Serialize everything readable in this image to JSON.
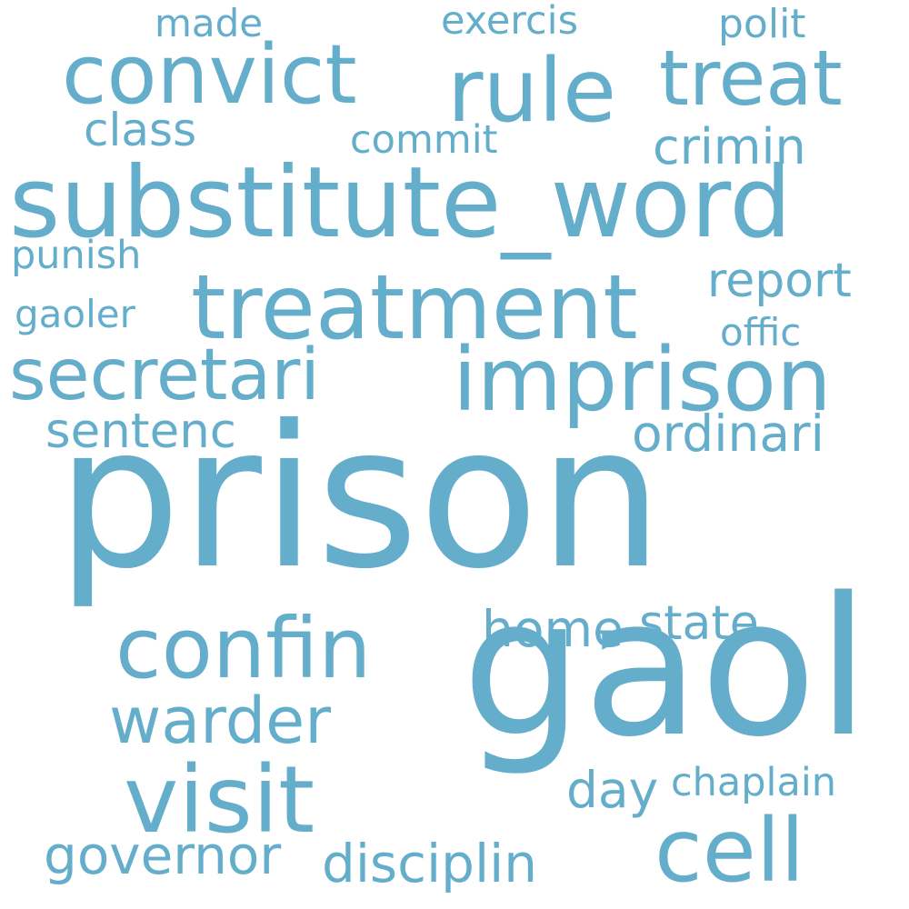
{
  "title": "Word cloud",
  "color": "#65aecb",
  "background": "#ffffff",
  "words": [
    {
      "text": "prison"
    },
    {
      "text": "gaol"
    },
    {
      "text": "substitute_word"
    },
    {
      "text": "treatment"
    },
    {
      "text": "imprison"
    },
    {
      "text": "convict"
    },
    {
      "text": "secretari"
    },
    {
      "text": "confin"
    },
    {
      "text": "visit"
    },
    {
      "text": "rule"
    },
    {
      "text": "treat"
    },
    {
      "text": "cell"
    },
    {
      "text": "warder"
    },
    {
      "text": "governor"
    },
    {
      "text": "disciplin"
    },
    {
      "text": "ordinari"
    },
    {
      "text": "sentenc"
    },
    {
      "text": "home"
    },
    {
      "text": "state"
    },
    {
      "text": "crimin"
    },
    {
      "text": "report"
    },
    {
      "text": "chaplain"
    },
    {
      "text": "class"
    },
    {
      "text": "day"
    },
    {
      "text": "exercis"
    },
    {
      "text": "polit"
    },
    {
      "text": "commit"
    },
    {
      "text": "offic"
    },
    {
      "text": "made"
    },
    {
      "text": "punish"
    },
    {
      "text": "gaoler"
    }
  ]
}
